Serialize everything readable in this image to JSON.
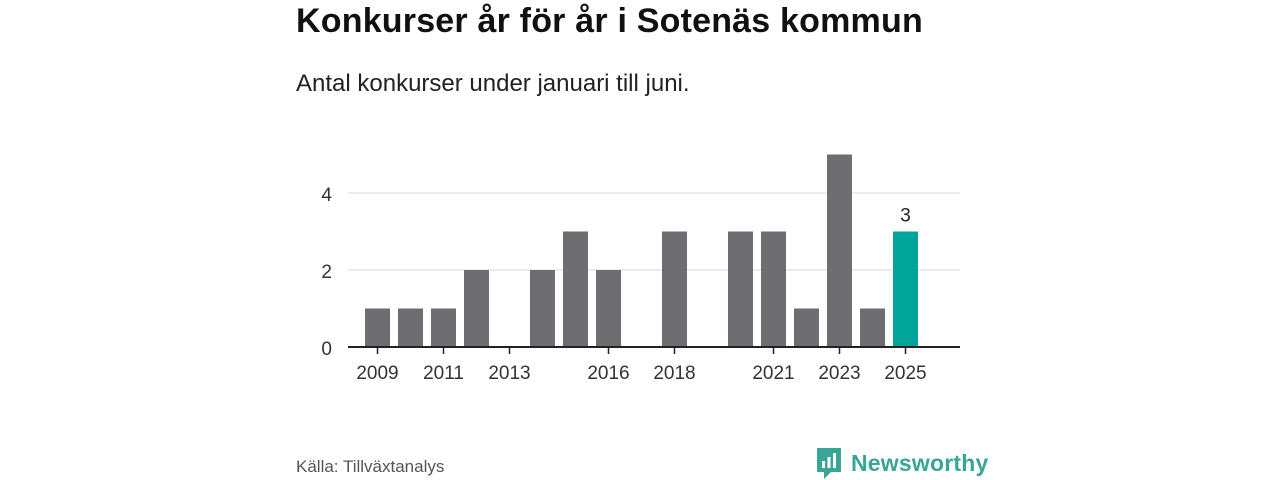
{
  "header": {
    "title": "Konkurser år för år i Sotenäs kommun",
    "subtitle": "Antal konkurser under januari till juni."
  },
  "footer": {
    "source": "Källa: Tillväxtanalys",
    "brand": "Newsworthy"
  },
  "colors": {
    "bar": "#6e6d72",
    "highlight": "#00a499",
    "grid": "#d9d9d9",
    "axis": "#222222",
    "brand": "#3aa596"
  },
  "icons": [
    "newsworthy-logo-icon"
  ],
  "chart_data": {
    "type": "bar",
    "categories": [
      "2009",
      "2010",
      "2011",
      "2012",
      "2013",
      "2014",
      "2015",
      "2016",
      "2017",
      "2018",
      "2019",
      "2020",
      "2021",
      "2022",
      "2023",
      "2024",
      "2025"
    ],
    "values": [
      1,
      1,
      1,
      2,
      0,
      2,
      3,
      2,
      0,
      3,
      0,
      3,
      3,
      1,
      5,
      1,
      3
    ],
    "x_tick_labels": [
      "2009",
      "2011",
      "2013",
      "2016",
      "2018",
      "2021",
      "2023",
      "2025"
    ],
    "y_ticks": [
      0,
      2,
      4
    ],
    "ylim": [
      0,
      5
    ],
    "highlight_category": "2025",
    "data_labels": [
      {
        "category": "2025",
        "label": "3"
      }
    ],
    "title": "Konkurser år för år i Sotenäs kommun",
    "subtitle": "Antal konkurser under januari till juni.",
    "xlabel": "",
    "ylabel": "",
    "grid": true
  }
}
